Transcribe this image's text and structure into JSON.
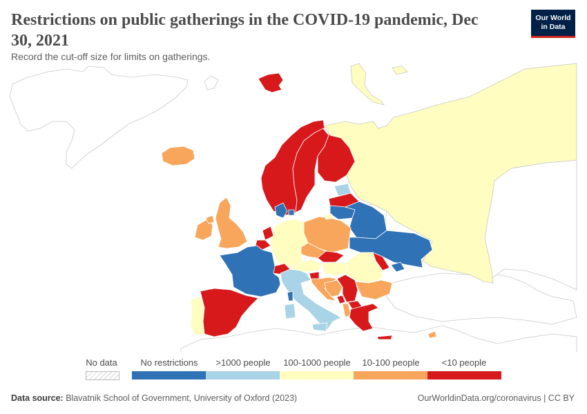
{
  "header": {
    "title": "Restrictions on public gatherings in the COVID-19 pandemic, Dec 30, 2021",
    "subtitle": "Record the cut-off size for limits on gatherings.",
    "logo_line1": "Our World",
    "logo_line2": "in Data"
  },
  "legend": {
    "no_data": "No data",
    "items": [
      {
        "label": "No restrictions",
        "color": "#2f72b5"
      },
      {
        "label": ">1000 people",
        "color": "#a9d3e6"
      },
      {
        "label": "100-1000 people",
        "color": "#fffdbf"
      },
      {
        "label": "10-100 people",
        "color": "#f7a65c"
      },
      {
        "label": "<10 people",
        "color": "#d7191c"
      }
    ]
  },
  "colors": {
    "no_restrictions": "#2f72b5",
    "gt_1000": "#a9d3e6",
    "r_100_1000": "#fffdbf",
    "r_10_100": "#f7a65c",
    "lt_10": "#d7191c",
    "no_data_stroke": "#c8c8c8"
  },
  "footer": {
    "source_label": "Data source:",
    "source_text": "Blavatnik School of Government, University of Oxford (2023)",
    "url": "OurWorldinData.org/coronavirus | CC BY"
  }
}
